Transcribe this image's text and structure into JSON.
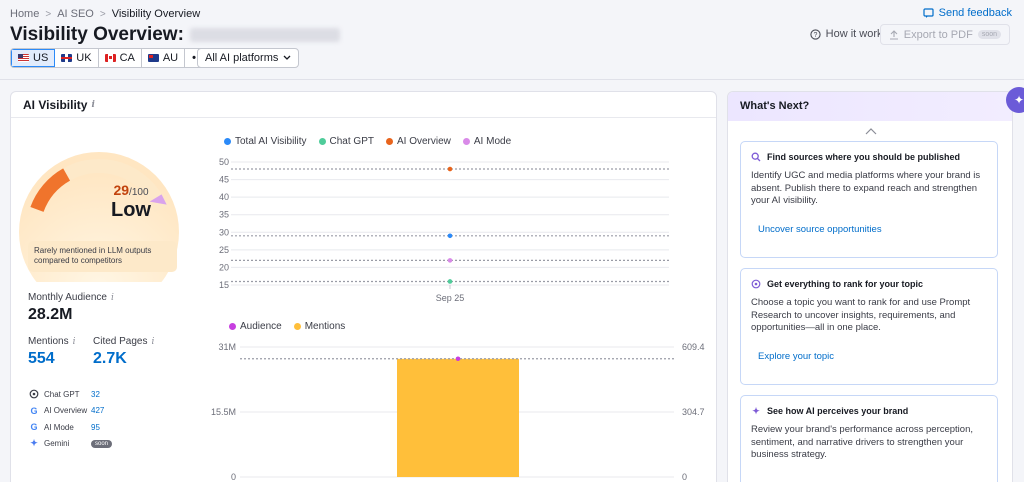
{
  "breadcrumb": {
    "home": "Home",
    "ai_seo": "AI SEO",
    "current": "Visibility Overview"
  },
  "header": {
    "title": "Visibility Overview:",
    "send_feedback": "Send feedback",
    "how_it_works": "How it works",
    "export_pdf": "Export to PDF",
    "export_badge": "soon"
  },
  "countries": [
    {
      "code": "US",
      "active": true
    },
    {
      "code": "UK",
      "active": false
    },
    {
      "code": "CA",
      "active": false
    },
    {
      "code": "AU",
      "active": false
    }
  ],
  "more_label": "•••",
  "platform_select": {
    "value": "All AI platforms"
  },
  "ai_visibility": {
    "title": "AI Visibility",
    "score": "29",
    "score_max": "/100",
    "score_level": 0.29,
    "level_label": "Low",
    "note": "Rarely mentioned in LLM outputs compared to competitors",
    "monthly_audience_label": "Monthly Audience",
    "monthly_audience": "28.2M",
    "mentions_label": "Mentions",
    "mentions": "554",
    "cited_pages_label": "Cited Pages",
    "cited_pages": "2.7K",
    "platforms": [
      {
        "name": "Chat GPT",
        "value": "32",
        "icon": "chatgpt-icon"
      },
      {
        "name": "AI Overview",
        "value": "427",
        "icon": "google-icon"
      },
      {
        "name": "AI Mode",
        "value": "95",
        "icon": "google-icon"
      },
      {
        "name": "Gemini",
        "value": "",
        "badge": "soon",
        "icon": "gemini-icon"
      }
    ]
  },
  "colors": {
    "total": "#2b8af8",
    "chatgpt": "#4fcc9a",
    "ai_overview": "#e8641c",
    "ai_mode": "#d98ae8",
    "audience": "#c73fe0",
    "mentions": "#ffbf3a"
  },
  "chart_data": [
    {
      "type": "scatter",
      "legend": [
        "Total AI Visibility",
        "Chat GPT",
        "AI Overview",
        "AI Mode"
      ],
      "categories": [
        "Sep 25"
      ],
      "yticks": [
        15,
        20,
        25,
        30,
        35,
        40,
        45,
        50
      ],
      "ylim": [
        15,
        50
      ],
      "series": [
        {
          "name": "Total AI Visibility",
          "values": [
            29
          ]
        },
        {
          "name": "Chat GPT",
          "values": [
            16
          ]
        },
        {
          "name": "AI Overview",
          "values": [
            48
          ]
        },
        {
          "name": "AI Mode",
          "values": [
            22
          ]
        }
      ]
    },
    {
      "type": "bar",
      "legend": [
        "Audience",
        "Mentions"
      ],
      "y_left_ticks": [
        "31M",
        "15.5M",
        "0"
      ],
      "y_right_ticks": [
        "609.4",
        "304.7",
        "0"
      ],
      "ylim_left": [
        0,
        31000000
      ],
      "ylim_right": [
        0,
        609.4
      ],
      "series": [
        {
          "name": "Mentions",
          "values": [
            554
          ]
        },
        {
          "name": "Audience",
          "values": [
            28200000
          ]
        }
      ]
    }
  ],
  "whats_next": {
    "title": "What's Next?",
    "cards": [
      {
        "title": "Find sources where you should be published",
        "desc": "Identify UGC and media platforms where your brand is absent. Publish there to expand reach and strengthen your AI visibility.",
        "link": "Uncover source opportunities"
      },
      {
        "title": "Get everything to rank for your topic",
        "desc": "Choose a topic you want to rank for and use Prompt Research to uncover insights, requirements, and opportunities—all in one place.",
        "link": "Explore your topic"
      },
      {
        "title": "See how AI perceives your brand",
        "desc": "Review your brand's performance across perception, sentiment, and narrative drivers to strengthen your business strategy.",
        "link": ""
      }
    ]
  }
}
